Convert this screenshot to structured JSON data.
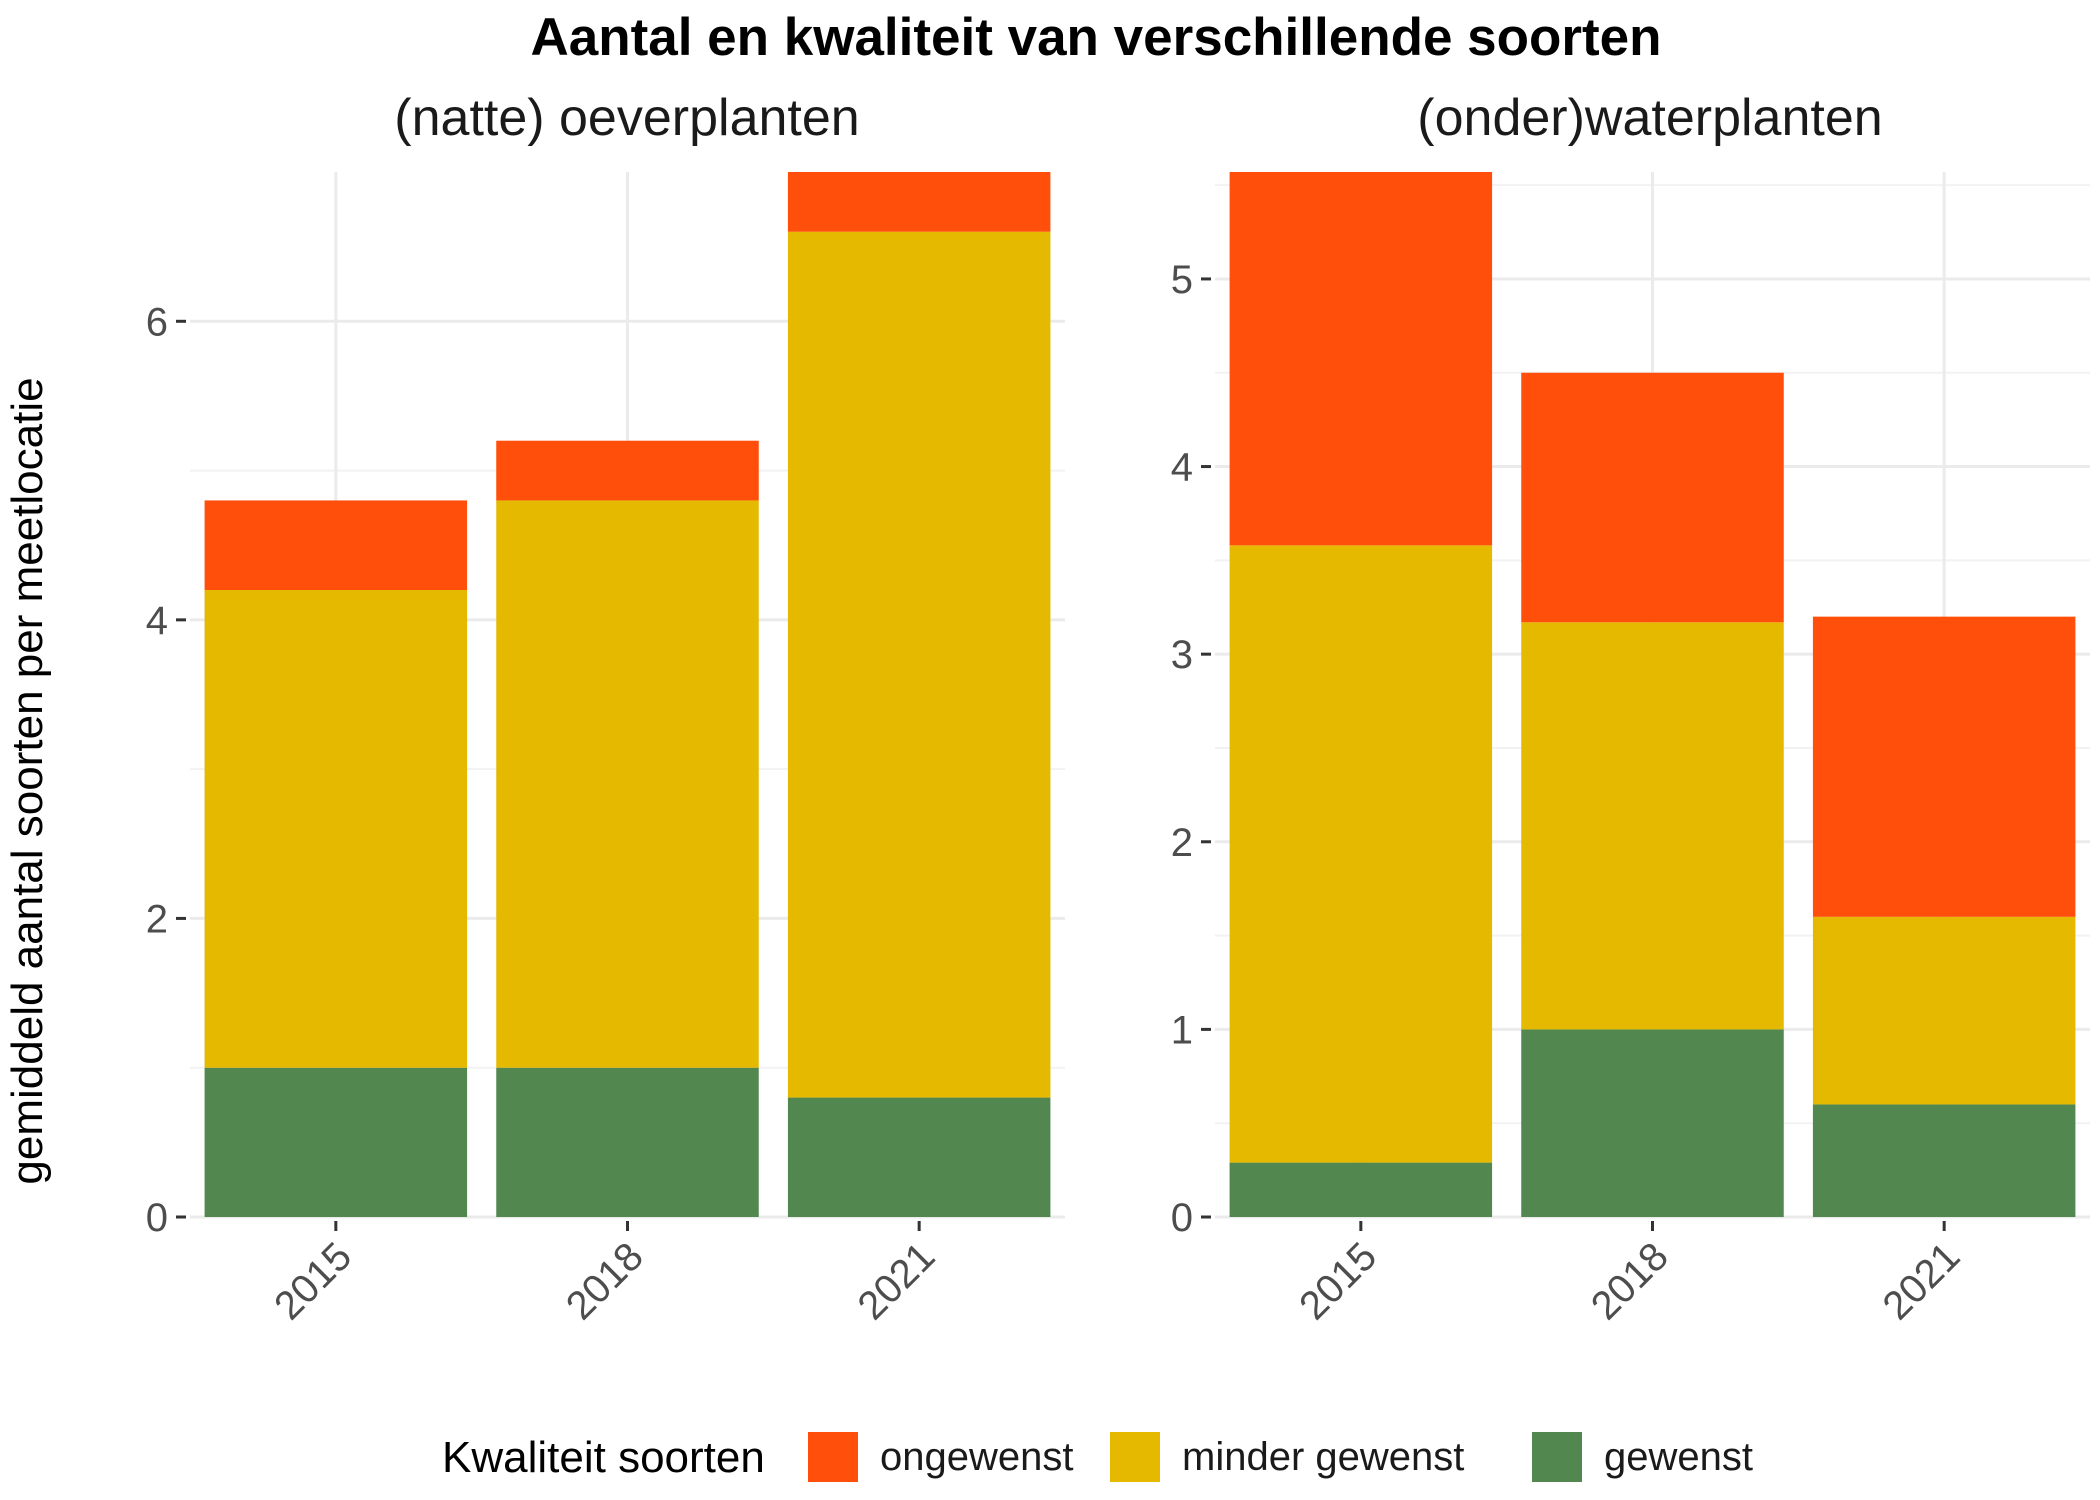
{
  "chart_data": {
    "type": "bar",
    "stacked": true,
    "title": "Aantal en kwaliteit van verschillende soorten",
    "ylabel": "gemiddeld aantal soorten per meetlocatie",
    "legend": {
      "title": "Kwaliteit soorten",
      "position": "bottom",
      "entries": [
        {
          "name": "ongewenst",
          "color": "#FF4F0A"
        },
        {
          "name": "minder gewenst",
          "color": "#E5B900"
        },
        {
          "name": "gewenst",
          "color": "#52884F"
        }
      ]
    },
    "grid": true,
    "panels": [
      {
        "title": "(natte) oeverplanten",
        "categories": [
          "2015",
          "2018",
          "2021"
        ],
        "ylim": [
          0,
          7
        ],
        "yticks": [
          0,
          2,
          4,
          6
        ],
        "ytick_labels": [
          "0",
          "2",
          "4",
          "6"
        ],
        "series": [
          {
            "name": "gewenst",
            "values": [
              1.0,
              1.0,
              0.8
            ]
          },
          {
            "name": "minder gewenst",
            "values": [
              3.2,
              3.8,
              5.8
            ]
          },
          {
            "name": "ongewenst",
            "values": [
              0.6,
              0.4,
              0.4
            ]
          }
        ]
      },
      {
        "title": "(onder)waterplanten",
        "categories": [
          "2015",
          "2018",
          "2021"
        ],
        "ylim": [
          0,
          5.57
        ],
        "yticks": [
          0,
          1,
          2,
          3,
          4,
          5
        ],
        "ytick_labels": [
          "0",
          "1",
          "2",
          "3",
          "4",
          "5"
        ],
        "series": [
          {
            "name": "gewenst",
            "values": [
              0.29,
              1.0,
              0.6
            ]
          },
          {
            "name": "minder gewenst",
            "values": [
              3.29,
              2.17,
              1.0
            ]
          },
          {
            "name": "ongewenst",
            "values": [
              1.99,
              1.33,
              1.6
            ]
          }
        ]
      }
    ]
  }
}
